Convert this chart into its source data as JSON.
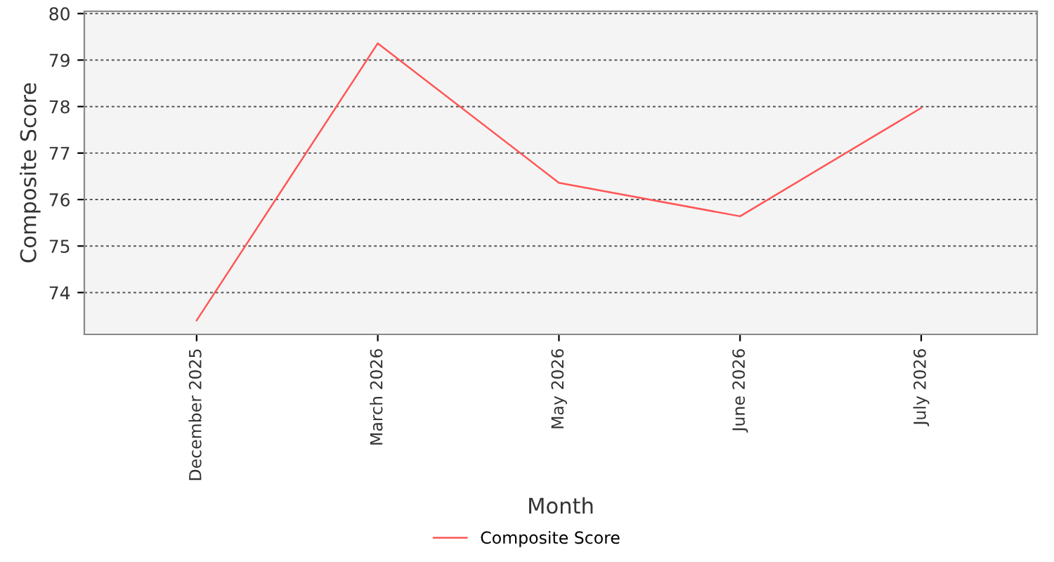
{
  "chart_data": {
    "type": "line",
    "xlabel": "Month",
    "ylabel": "Composite Score",
    "categories": [
      "December 2025",
      "March 2026",
      "May 2026",
      "June 2026",
      "July 2026"
    ],
    "series": [
      {
        "name": "Composite Score",
        "color": "#ff5555",
        "values": [
          73.4,
          79.36,
          76.36,
          75.64,
          77.97
        ]
      }
    ],
    "ylim": [
      73.1,
      80.05
    ],
    "yticks": [
      74,
      75,
      76,
      77,
      78,
      79,
      80
    ],
    "grid": "y",
    "legend": "bottom",
    "marker": "none",
    "line_style": "solid"
  }
}
